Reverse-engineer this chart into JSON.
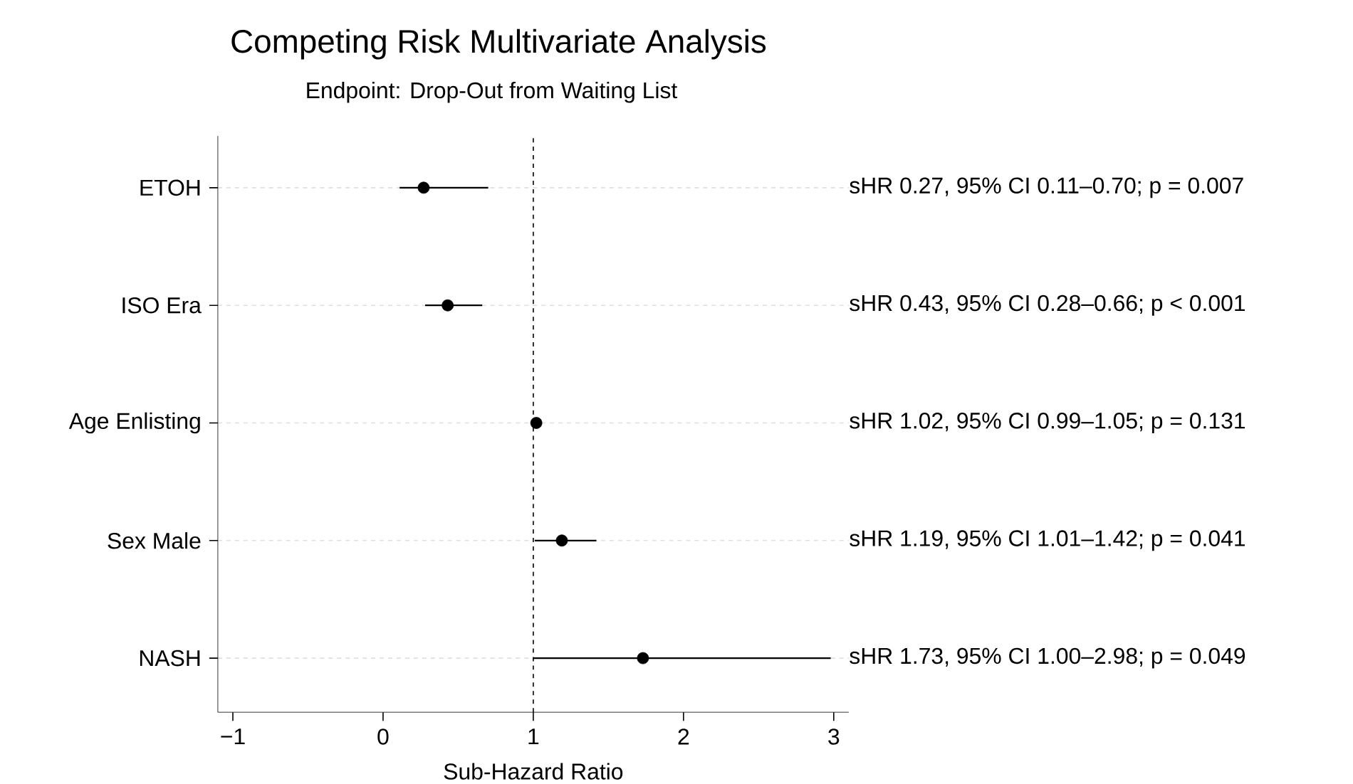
{
  "chart_data": {
    "type": "scatter",
    "title": "Competing Risk Multivariate Analysis",
    "subtitle": "Endpoint: Drop-Out from Waiting List",
    "xlabel": "Sub-Hazard Ratio",
    "orientation": "horizontal",
    "categories": [
      "ETOH",
      "ISO Era",
      "Age Enlisting",
      "Sex Male",
      "NASH"
    ],
    "values": [
      0.27,
      0.43,
      1.02,
      1.19,
      1.73
    ],
    "errors": [
      [
        0.11,
        0.7
      ],
      [
        0.28,
        0.66
      ],
      [
        0.99,
        1.05
      ],
      [
        1.01,
        1.42
      ],
      [
        1.0,
        2.98
      ]
    ],
    "color": "#000000",
    "grid": "y",
    "xlim": [
      -1.1,
      3.1
    ],
    "xticks": [
      {
        "value": -1,
        "label": "−1"
      },
      0,
      1,
      2,
      3
    ],
    "ref_lines": [
      {
        "axis": "x",
        "value": 1,
        "line_style": "dashed",
        "color": "#000000"
      }
    ],
    "annotations": [
      "sHR 0.27, 95% CI 0.11–0.70; p = 0.007",
      "sHR 0.43, 95% CI 0.28–0.66; p < 0.001",
      "sHR 1.02, 95% CI 0.99–1.05; p = 0.131",
      "sHR 1.19, 95% CI 1.01–1.42; p = 0.041",
      "sHR 1.73, 95% CI 1.00–2.98; p = 0.049"
    ]
  }
}
